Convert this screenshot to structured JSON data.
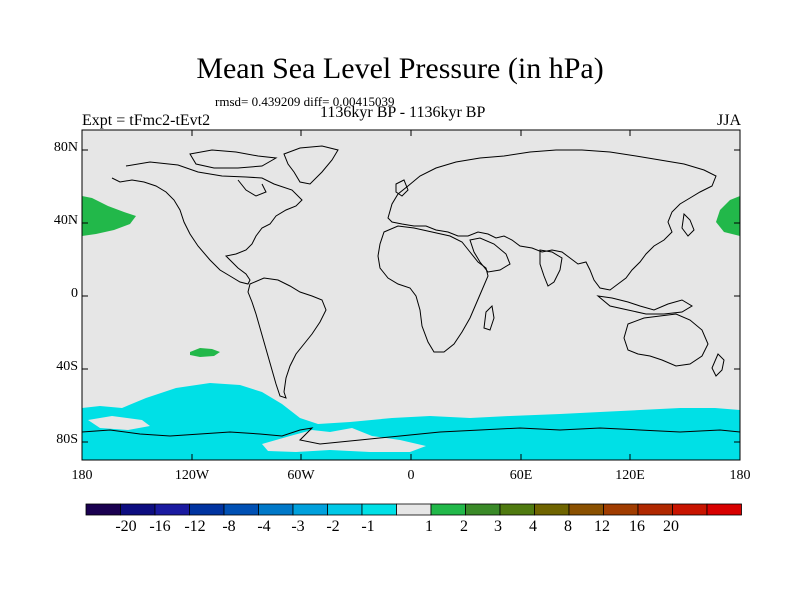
{
  "title": "Mean Sea Level Pressure (in hPa)",
  "stats": "rmsd= 0.439209 diff= 0.00415039",
  "period": "1136kyr BP - 1136kyr BP",
  "experiment": "Expt = tFmc2-tEvt2",
  "season": "JJA",
  "map": {
    "ocean_color": "#e6e6e6",
    "lat_labels": [
      "80N",
      "40N",
      "0",
      "40S",
      "80S"
    ],
    "lon_labels": [
      "180",
      "120W",
      "60W",
      "0",
      "60E",
      "120E",
      "180"
    ]
  },
  "colorbar": {
    "colors": [
      "#1a0050",
      "#0d0d80",
      "#1a1aa0",
      "#0033a0",
      "#0050b4",
      "#0078c8",
      "#00a0dc",
      "#00c8e6",
      "#00e0e6",
      "#e6e6e6",
      "#22b84a",
      "#3a8a28",
      "#4f7a10",
      "#6f6400",
      "#8a5000",
      "#a03c00",
      "#b02800",
      "#c81400",
      "#d80000"
    ],
    "labels": [
      "-20",
      "-16",
      "-12",
      "-8",
      "-4",
      "-3",
      "-2",
      "-1",
      "1",
      "2",
      "3",
      "4",
      "8",
      "12",
      "16",
      "20"
    ]
  }
}
